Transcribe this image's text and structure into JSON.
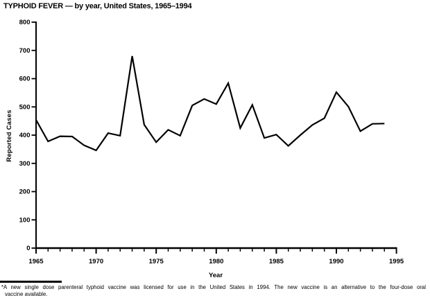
{
  "title": "TYPHOID FEVER — by year, United States, 1965–1994",
  "chart_data": {
    "type": "line",
    "title": "TYPHOID FEVER — by year, United States, 1965–1994",
    "xlabel": "Year",
    "ylabel": "Reported Cases",
    "xlim": [
      1965,
      1995
    ],
    "ylim": [
      0,
      800
    ],
    "y_tick_step": 100,
    "x_major_tick_step": 5,
    "x_minor_tick_step": 1,
    "grid": false,
    "legend": "none",
    "line_color": "#000000",
    "x": [
      1965,
      1966,
      1967,
      1968,
      1969,
      1970,
      1971,
      1972,
      1973,
      1974,
      1975,
      1976,
      1977,
      1978,
      1979,
      1980,
      1981,
      1982,
      1983,
      1984,
      1985,
      1986,
      1987,
      1988,
      1989,
      1990,
      1991,
      1992,
      1993,
      1994
    ],
    "values": [
      454,
      378,
      396,
      395,
      364,
      346,
      407,
      398,
      680,
      437,
      375,
      419,
      398,
      505,
      528,
      510,
      584,
      425,
      507,
      390,
      402,
      362,
      400,
      436,
      460,
      552,
      501,
      414,
      440,
      441
    ]
  },
  "footnote": {
    "line1": "*A new single dose parenteral typhoid vaccine was licensed for use in the United States in 1994. The new vaccine is an alternative to the four-dose oral",
    "line2": "vaccine available."
  }
}
